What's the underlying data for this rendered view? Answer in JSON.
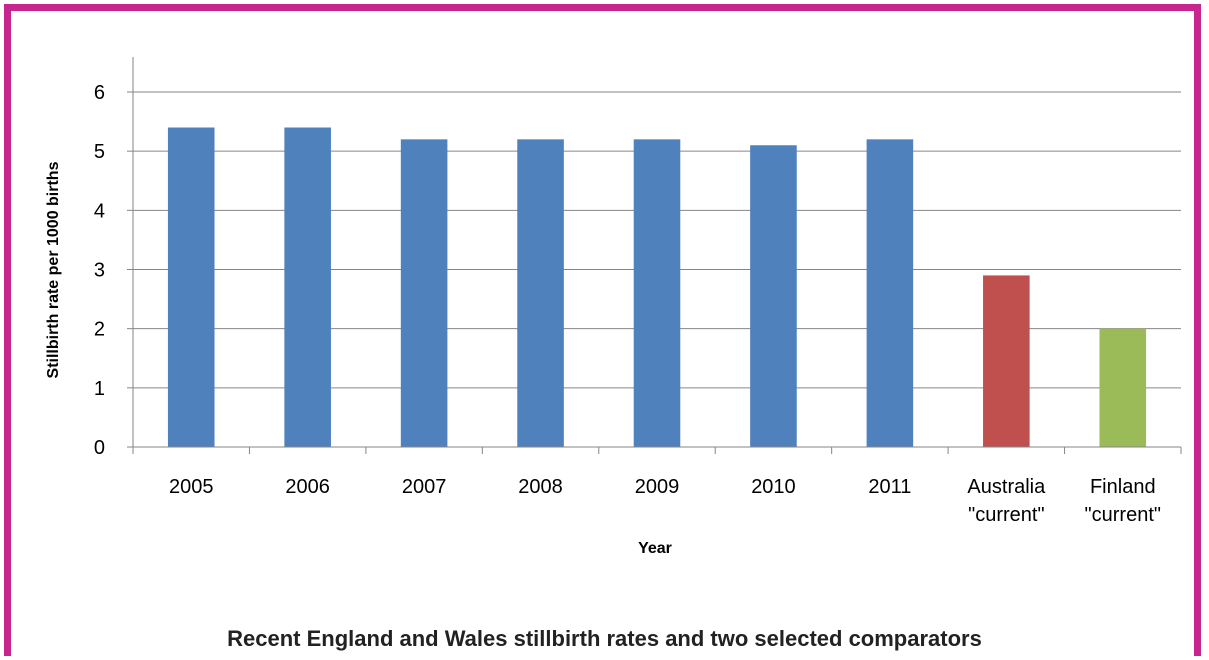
{
  "chart_data": {
    "type": "bar",
    "categories": [
      [
        "2005"
      ],
      [
        "2006"
      ],
      [
        "2007"
      ],
      [
        "2008"
      ],
      [
        "2009"
      ],
      [
        "2010"
      ],
      [
        "2011"
      ],
      [
        "Australia",
        "\"current\""
      ],
      [
        "Finland",
        "\"current\""
      ]
    ],
    "values": [
      5.4,
      5.4,
      5.2,
      5.2,
      5.2,
      5.1,
      5.2,
      2.9,
      2.0
    ],
    "bar_colors": [
      "#4f81bd",
      "#4f81bd",
      "#4f81bd",
      "#4f81bd",
      "#4f81bd",
      "#4f81bd",
      "#4f81bd",
      "#c0504d",
      "#9bbb59"
    ],
    "ylim": [
      0,
      6
    ],
    "yticks": [
      0,
      1,
      2,
      3,
      4,
      5,
      6
    ],
    "grid": true,
    "xlabel": "Year",
    "ylabel": "Stillbirth rate per 1000 births",
    "caption": "Recent England and Wales stillbirth rates and two selected comparators"
  },
  "colors": {
    "frame": "#c8268f",
    "gridline": "#868686",
    "axis": "#868686"
  }
}
